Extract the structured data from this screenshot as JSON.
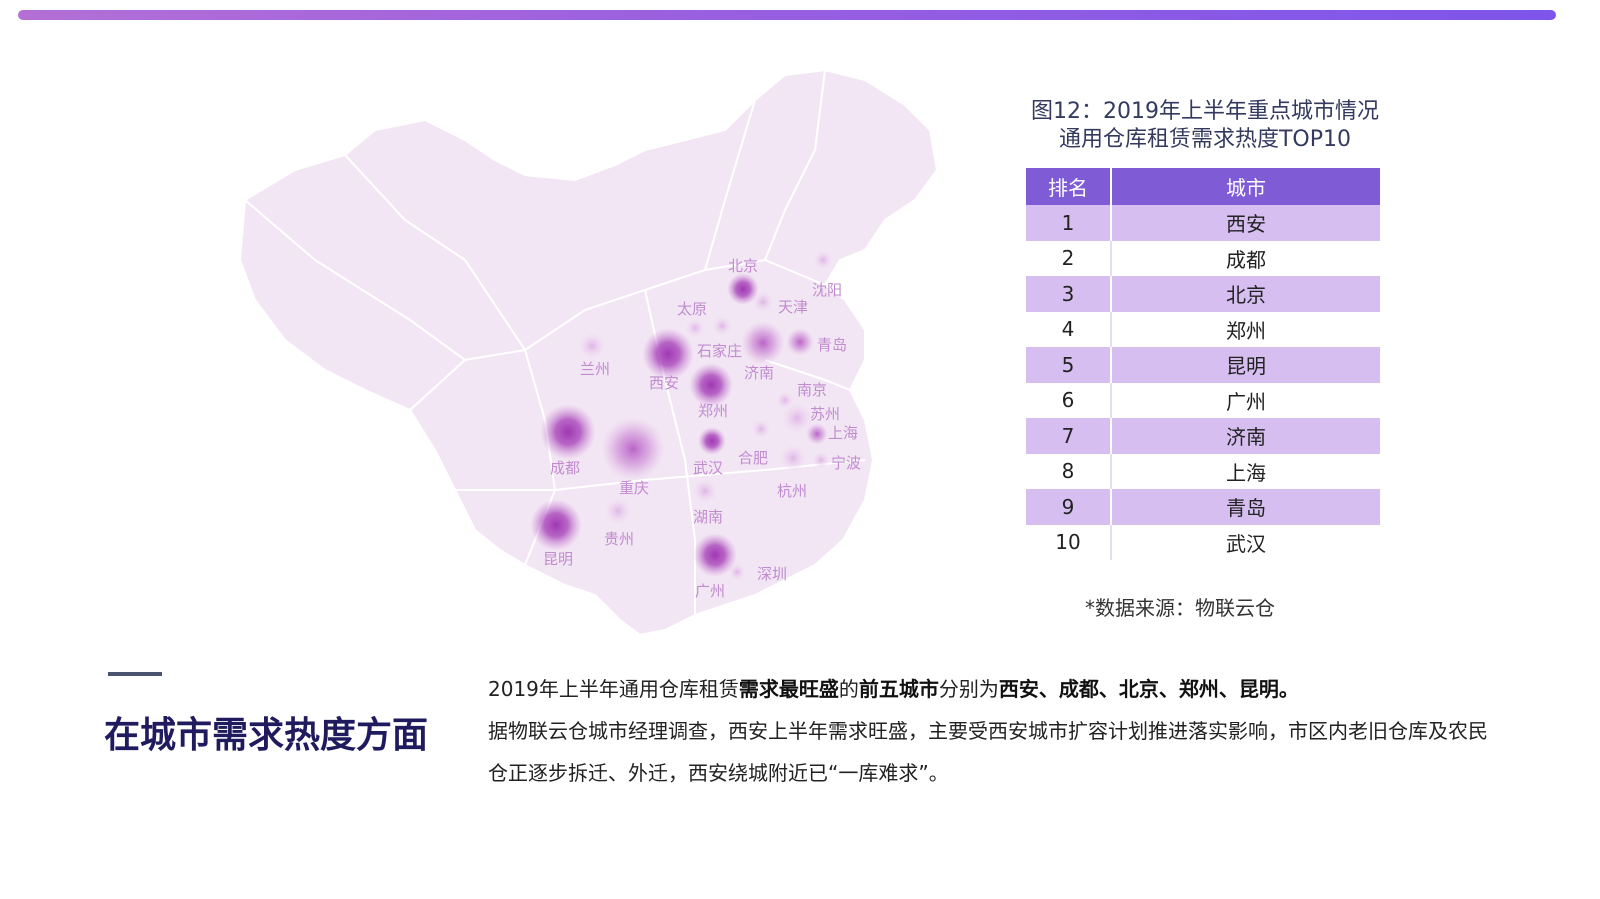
{
  "figure": {
    "title_line1": "图12：2019年上半年重点城市情况",
    "title_line2": "通用仓库租赁需求热度TOP10"
  },
  "table": {
    "headers": [
      "排名",
      "城市"
    ],
    "rows": [
      {
        "rank": "1",
        "city": "西安"
      },
      {
        "rank": "2",
        "city": "成都"
      },
      {
        "rank": "3",
        "city": "北京"
      },
      {
        "rank": "4",
        "city": "郑州"
      },
      {
        "rank": "5",
        "city": "昆明"
      },
      {
        "rank": "6",
        "city": "广州"
      },
      {
        "rank": "7",
        "city": "济南"
      },
      {
        "rank": "8",
        "city": "上海"
      },
      {
        "rank": "9",
        "city": "青岛"
      },
      {
        "rank": "10",
        "city": "武汉"
      }
    ]
  },
  "source": "*数据来源：物联云仓",
  "map": {
    "cities": [
      {
        "name": "北京",
        "level": 3
      },
      {
        "name": "沈阳",
        "level": 1
      },
      {
        "name": "天津",
        "level": 1
      },
      {
        "name": "太原",
        "level": 1
      },
      {
        "name": "石家庄",
        "level": 1
      },
      {
        "name": "青岛",
        "level": 2
      },
      {
        "name": "济南",
        "level": 2
      },
      {
        "name": "兰州",
        "level": 1
      },
      {
        "name": "西安",
        "level": 3
      },
      {
        "name": "郑州",
        "level": 3
      },
      {
        "name": "南京",
        "level": 1
      },
      {
        "name": "苏州",
        "level": 1
      },
      {
        "name": "上海",
        "level": 2
      },
      {
        "name": "成都",
        "level": 3
      },
      {
        "name": "重庆",
        "level": 2
      },
      {
        "name": "武汉",
        "level": 2
      },
      {
        "name": "合肥",
        "level": 1
      },
      {
        "name": "宁波",
        "level": 1
      },
      {
        "name": "杭州",
        "level": 1
      },
      {
        "name": "湖南",
        "level": 1
      },
      {
        "name": "贵州",
        "level": 1
      },
      {
        "name": "昆明",
        "level": 3
      },
      {
        "name": "广州",
        "level": 3
      },
      {
        "name": "深圳",
        "level": 1
      }
    ]
  },
  "section": {
    "headline": "在城市需求热度方面",
    "p1_a": "2019年上半年通用仓库租赁",
    "p1_b": "需求最旺盛",
    "p1_c": "的",
    "p1_d": "前五城市",
    "p1_e": "分别为",
    "p1_f": "西安、成都、北京、郑州、昆明。",
    "p2": "据物联云仓城市经理调查，西安上半年需求旺盛，主要受西安城市扩容计划推进落实影响，市区内老旧仓库及农民仓正逐步拆迁、外迁，西安绕城附近已“一库难求”。"
  },
  "colors": {
    "accent": "#7f5bd6",
    "row_highlight": "#d6bff0",
    "heat": "#a23bb5",
    "headline": "#1f1b5e"
  }
}
